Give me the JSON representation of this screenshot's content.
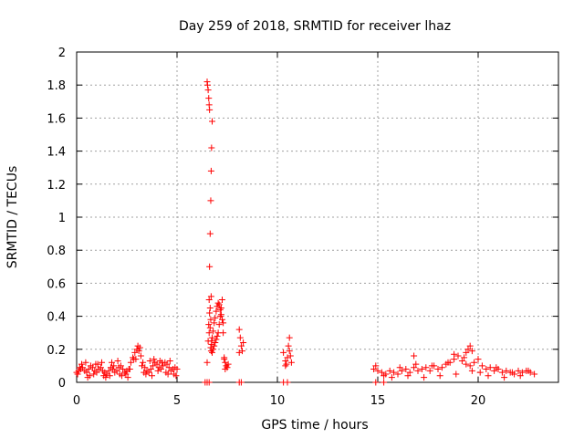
{
  "chart_data": {
    "type": "scatter",
    "title": "Day 259 of 2018, SRMTID for receiver lhaz",
    "xlabel": "GPS time / hours",
    "ylabel": "SRMTID / TECUs",
    "xlim": [
      0,
      24
    ],
    "ylim": [
      0,
      2
    ],
    "xticks": [
      0,
      5,
      10,
      15,
      20
    ],
    "xtick_labels": [
      "0",
      "5",
      "10",
      "15",
      "20"
    ],
    "yticks": [
      0,
      0.2,
      0.4,
      0.6,
      0.8,
      1,
      1.2,
      1.4,
      1.6,
      1.8,
      2
    ],
    "ytick_labels": [
      "0",
      "0.2",
      "0.4",
      "0.6",
      "0.8",
      "1",
      "1.2",
      "1.4",
      "1.6",
      "1.8",
      "2"
    ],
    "grid": true,
    "marker": "+",
    "color": "#ff0000",
    "series": [
      {
        "x": [
          0.0,
          0.1,
          0.2,
          0.3,
          0.4,
          0.5,
          0.6,
          0.7,
          0.8,
          0.9,
          1.0,
          1.1,
          1.2,
          1.3,
          1.4,
          1.5,
          1.6,
          1.7,
          1.8,
          1.9,
          2.0,
          2.1,
          2.2,
          2.3,
          2.4,
          2.5,
          2.6,
          2.7,
          2.8,
          2.9,
          3.0,
          3.1,
          3.2,
          3.3,
          3.4,
          3.5,
          3.6,
          3.7,
          3.8,
          3.9,
          4.0,
          4.1,
          4.2,
          4.3,
          4.4,
          4.5,
          4.6,
          4.7,
          4.8,
          4.9,
          5.0,
          0.05,
          0.25,
          0.45,
          0.65,
          0.85,
          1.05,
          1.25,
          1.45,
          1.65,
          1.85,
          2.05,
          2.25,
          2.45,
          2.65,
          2.85,
          3.05,
          3.25,
          3.45,
          3.65,
          3.85,
          4.05,
          4.25,
          4.45,
          4.65,
          4.85,
          0.15,
          0.55,
          0.95,
          1.35,
          1.75,
          2.15,
          2.55,
          2.95,
          3.15,
          3.35,
          3.75,
          4.15,
          4.55,
          4.95,
          6.4,
          6.5,
          6.55,
          6.58,
          6.6,
          6.62,
          6.65,
          6.68,
          6.7,
          6.72,
          6.75,
          6.8,
          6.85,
          6.9,
          6.95,
          7.0,
          7.05,
          7.1,
          7.15,
          7.2,
          7.25,
          7.3,
          7.35,
          7.4,
          7.45,
          7.5,
          7.55,
          6.5,
          6.52,
          6.55,
          6.58,
          6.6,
          6.62,
          6.65,
          6.68,
          6.7,
          6.72,
          6.75,
          6.6,
          6.62,
          6.65,
          6.68,
          6.7,
          6.72,
          6.75,
          6.8,
          6.85,
          6.9,
          6.95,
          7.0,
          7.05,
          7.1,
          7.15,
          7.2,
          7.25,
          7.3,
          7.35,
          7.4,
          8.1,
          8.15,
          8.2,
          8.25,
          8.3,
          8.1,
          8.2,
          10.3,
          10.4,
          10.45,
          10.5,
          10.55,
          10.6,
          10.65,
          10.7,
          10.4,
          10.5,
          10.6,
          14.8,
          15.0,
          15.2,
          15.4,
          15.6,
          15.8,
          16.0,
          16.2,
          16.4,
          16.6,
          16.8,
          17.0,
          17.2,
          17.4,
          17.6,
          17.8,
          18.0,
          18.2,
          18.4,
          18.6,
          18.8,
          19.0,
          19.2,
          19.4,
          19.6,
          19.8,
          20.0,
          20.2,
          20.4,
          20.6,
          20.8,
          21.0,
          21.2,
          21.4,
          21.6,
          21.8,
          22.0,
          22.2,
          22.4,
          22.6,
          22.8,
          14.9,
          15.3,
          15.7,
          16.1,
          16.5,
          16.9,
          17.3,
          17.7,
          18.1,
          18.5,
          18.9,
          19.3,
          19.7,
          20.1,
          20.5,
          20.9,
          21.3,
          21.7,
          22.1,
          22.5,
          6.5,
          6.6,
          8.1,
          10.3,
          14.9,
          15.3,
          16.8,
          18.8,
          19.5,
          19.6,
          19.7,
          19.4
        ],
        "y": [
          0.06,
          0.07,
          0.08,
          0.09,
          0.07,
          0.06,
          0.08,
          0.1,
          0.09,
          0.07,
          0.06,
          0.08,
          0.09,
          0.07,
          0.06,
          0.05,
          0.07,
          0.09,
          0.08,
          0.06,
          0.07,
          0.09,
          0.1,
          0.08,
          0.06,
          0.07,
          0.08,
          0.12,
          0.15,
          0.18,
          0.2,
          0.19,
          0.16,
          0.12,
          0.09,
          0.07,
          0.06,
          0.08,
          0.1,
          0.12,
          0.11,
          0.09,
          0.08,
          0.1,
          0.12,
          0.11,
          0.09,
          0.07,
          0.08,
          0.09,
          0.08,
          0.05,
          0.11,
          0.12,
          0.04,
          0.05,
          0.11,
          0.12,
          0.03,
          0.04,
          0.1,
          0.13,
          0.04,
          0.05,
          0.08,
          0.14,
          0.22,
          0.1,
          0.05,
          0.13,
          0.14,
          0.07,
          0.12,
          0.06,
          0.13,
          0.05,
          0.09,
          0.03,
          0.11,
          0.04,
          0.12,
          0.05,
          0.03,
          0.14,
          0.21,
          0.06,
          0.04,
          0.13,
          0.05,
          0.04,
          0.0,
          0.12,
          0.25,
          0.35,
          0.5,
          0.7,
          0.9,
          1.1,
          1.28,
          1.42,
          1.58,
          0.2,
          0.22,
          0.24,
          0.26,
          0.28,
          0.3,
          0.35,
          0.4,
          0.45,
          0.5,
          0.3,
          0.15,
          0.12,
          0.1,
          0.09,
          0.11,
          1.82,
          1.8,
          1.77,
          1.72,
          1.68,
          1.65,
          0.45,
          0.38,
          0.52,
          0.25,
          0.18,
          0.3,
          0.42,
          0.33,
          0.21,
          0.19,
          0.23,
          0.27,
          0.31,
          0.36,
          0.39,
          0.43,
          0.46,
          0.48,
          0.47,
          0.44,
          0.41,
          0.38,
          0.36,
          0.14,
          0.08,
          0.32,
          0.27,
          0.22,
          0.19,
          0.24,
          0.18,
          0.0,
          0.18,
          0.13,
          0.11,
          0.15,
          0.22,
          0.27,
          0.16,
          0.12,
          0.1,
          0.0,
          0.19,
          0.08,
          0.07,
          0.06,
          0.05,
          0.07,
          0.06,
          0.05,
          0.07,
          0.08,
          0.06,
          0.09,
          0.07,
          0.08,
          0.09,
          0.07,
          0.1,
          0.08,
          0.09,
          0.11,
          0.12,
          0.14,
          0.16,
          0.13,
          0.11,
          0.1,
          0.12,
          0.14,
          0.1,
          0.08,
          0.09,
          0.07,
          0.08,
          0.06,
          0.07,
          0.06,
          0.05,
          0.07,
          0.06,
          0.07,
          0.06,
          0.05,
          0.1,
          0.04,
          0.03,
          0.09,
          0.04,
          0.11,
          0.03,
          0.1,
          0.04,
          0.12,
          0.05,
          0.15,
          0.07,
          0.06,
          0.04,
          0.09,
          0.03,
          0.06,
          0.04,
          0.07,
          0.0,
          0.0,
          0.0,
          0.0,
          0.0,
          0.0,
          0.16,
          0.17,
          0.2,
          0.22,
          0.19,
          0.18
        ]
      }
    ]
  }
}
